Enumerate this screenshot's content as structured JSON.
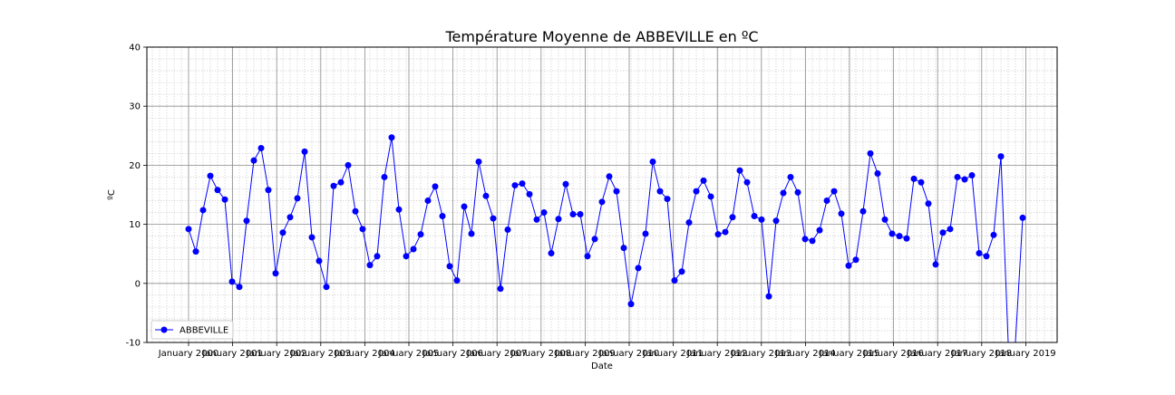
{
  "chart_data": {
    "type": "line",
    "title": "Température Moyenne de ABBEVILLE en ºC",
    "xlabel": "Date",
    "ylabel": "ºC",
    "ylim": [
      -10,
      40
    ],
    "yticks": [
      -10,
      0,
      10,
      20,
      30,
      40
    ],
    "x_tick_labels": [
      "January 2000",
      "January 2001",
      "January 2002",
      "January 2003",
      "January 2004",
      "January 2005",
      "January 2006",
      "January 2007",
      "January 2008",
      "January 2009",
      "January 2010",
      "January 2011",
      "January 2012",
      "January 2013",
      "January 2014",
      "January 2015",
      "January 2016",
      "January 2017",
      "January 2018",
      "January 2019"
    ],
    "grid": "on (major and minor)",
    "legend_position": "lower-left",
    "series": [
      {
        "name": "ABBEVILLE",
        "color": "#0000ff",
        "marker": "circle",
        "values": [
          9.2,
          5.4,
          12.4,
          18.2,
          15.8,
          14.2,
          0.3,
          -0.6,
          10.6,
          20.8,
          22.9,
          15.8,
          1.7,
          8.6,
          11.2,
          14.4,
          22.3,
          7.8,
          3.8,
          -0.6,
          16.5,
          17.1,
          20.0,
          12.2,
          9.2,
          3.1,
          4.6,
          18.0,
          24.7,
          12.5,
          4.6,
          5.8,
          8.3,
          14.0,
          16.4,
          11.4,
          2.9,
          0.5,
          13.0,
          8.4,
          20.6,
          14.8,
          11.0,
          -0.9,
          9.1,
          16.6,
          16.9,
          15.1,
          10.8,
          12.0,
          5.1,
          10.9,
          16.8,
          11.7,
          11.7,
          4.6,
          7.5,
          13.8,
          18.1,
          15.6,
          6.0,
          -3.5,
          2.6,
          8.4,
          20.6,
          15.6,
          14.3,
          0.5,
          2.0,
          10.3,
          15.6,
          17.4,
          14.7,
          8.3,
          8.7,
          11.2,
          19.1,
          17.1,
          11.4,
          10.8,
          -2.2,
          10.6,
          15.3,
          18.0,
          15.4,
          7.5,
          7.2,
          9.0,
          14.0,
          15.6,
          11.8,
          3.0,
          4.0,
          12.2,
          22.0,
          18.6,
          10.8,
          8.4,
          8.0,
          7.6,
          17.7,
          17.1,
          13.5,
          3.2,
          8.6,
          9.2,
          18.0,
          17.6,
          18.3,
          5.1,
          4.6,
          8.2,
          21.5,
          -10.5,
          -10.5,
          11.1
        ]
      }
    ]
  }
}
